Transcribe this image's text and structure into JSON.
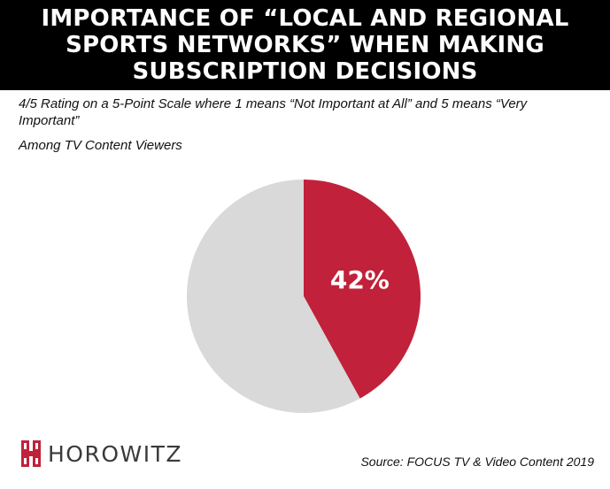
{
  "title": "IMPORTANCE OF “LOCAL AND REGIONAL SPORTS NETWORKS” WHEN MAKING SUBSCRIPTION DECISIONS",
  "subtitle": "4/5 Rating on a 5-Point Scale where 1 means “Not Important at All” and 5 means “Very Important”",
  "audience": "Among TV Content Viewers",
  "logo": {
    "text": "HOROWITZ",
    "icon": "horowitz-logo-mark-icon",
    "color": "#c1213a"
  },
  "source": "Source: FOCUS TV & Video Content 2019",
  "colors": {
    "highlight": "#c1213a",
    "remainder": "#d9d9d9",
    "title_bg": "#000000"
  },
  "chart_data": {
    "type": "pie",
    "slices": [
      {
        "value": 42,
        "label": "42%",
        "color": "#c1213a"
      },
      {
        "value": 58,
        "label": "",
        "color": "#d9d9d9"
      }
    ],
    "start": "12 o'clock",
    "direction": "clockwise"
  }
}
